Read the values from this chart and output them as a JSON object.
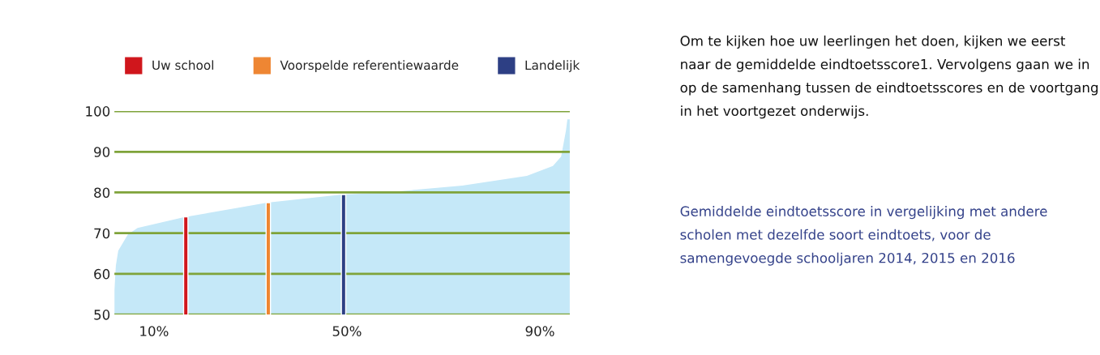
{
  "chart_data": {
    "type": "area",
    "series": [
      {
        "color": "#c5e8f8",
        "x": [
          1.8,
          2.1,
          2.6,
          4.6,
          6.6,
          16.2,
          33.5,
          49.0,
          57.1,
          73.9,
          87.3,
          92.7,
          94.4,
          95.4,
          95.7,
          96.2
        ],
        "values": [
          56,
          62,
          65.7,
          69.7,
          71.3,
          73.9,
          77.5,
          79.5,
          79.9,
          81.7,
          84.1,
          86.5,
          88.8,
          95.2,
          98,
          98
        ]
      },
      {
        "type": "bar",
        "name": "Uw school",
        "color": "#d0161c",
        "x": [
          16.6
        ],
        "values": [
          74
        ]
      },
      {
        "type": "bar",
        "name": "Voorspelde referentiewaarde",
        "color": "#ee8633",
        "x": [
          33.7
        ],
        "values": [
          77.5
        ]
      },
      {
        "type": "bar",
        "name": "Landelijk",
        "color": "#2d3f84",
        "x": [
          49.3
        ],
        "values": [
          79.5
        ]
      }
    ],
    "xlim": [
      1.8,
      96.2
    ],
    "xticks": [
      {
        "value": 10,
        "label": "10%"
      },
      {
        "value": 50,
        "label": "50%"
      },
      {
        "value": 90,
        "label": "90%"
      }
    ],
    "ylim": [
      50,
      100
    ],
    "yticks": [
      50,
      60,
      70,
      80,
      90,
      100
    ],
    "grid": "y",
    "legend": "top",
    "annotations": [
      "Om te kijken hoe uw leerlingen het doen, kijken we eerst naar de gemiddelde eindtoetsscore1. Vervolgens gaan we in op de samenhang tussen de eindtoetsscores en de voortgang in het voortgezet onderwijs.",
      "Gemiddelde eindtoetsscore in vergelijking met andere scholen met dezelfde soort eindtoets, voor de samengevoegde schooljaren 2014, 2015 en 2016"
    ]
  }
}
